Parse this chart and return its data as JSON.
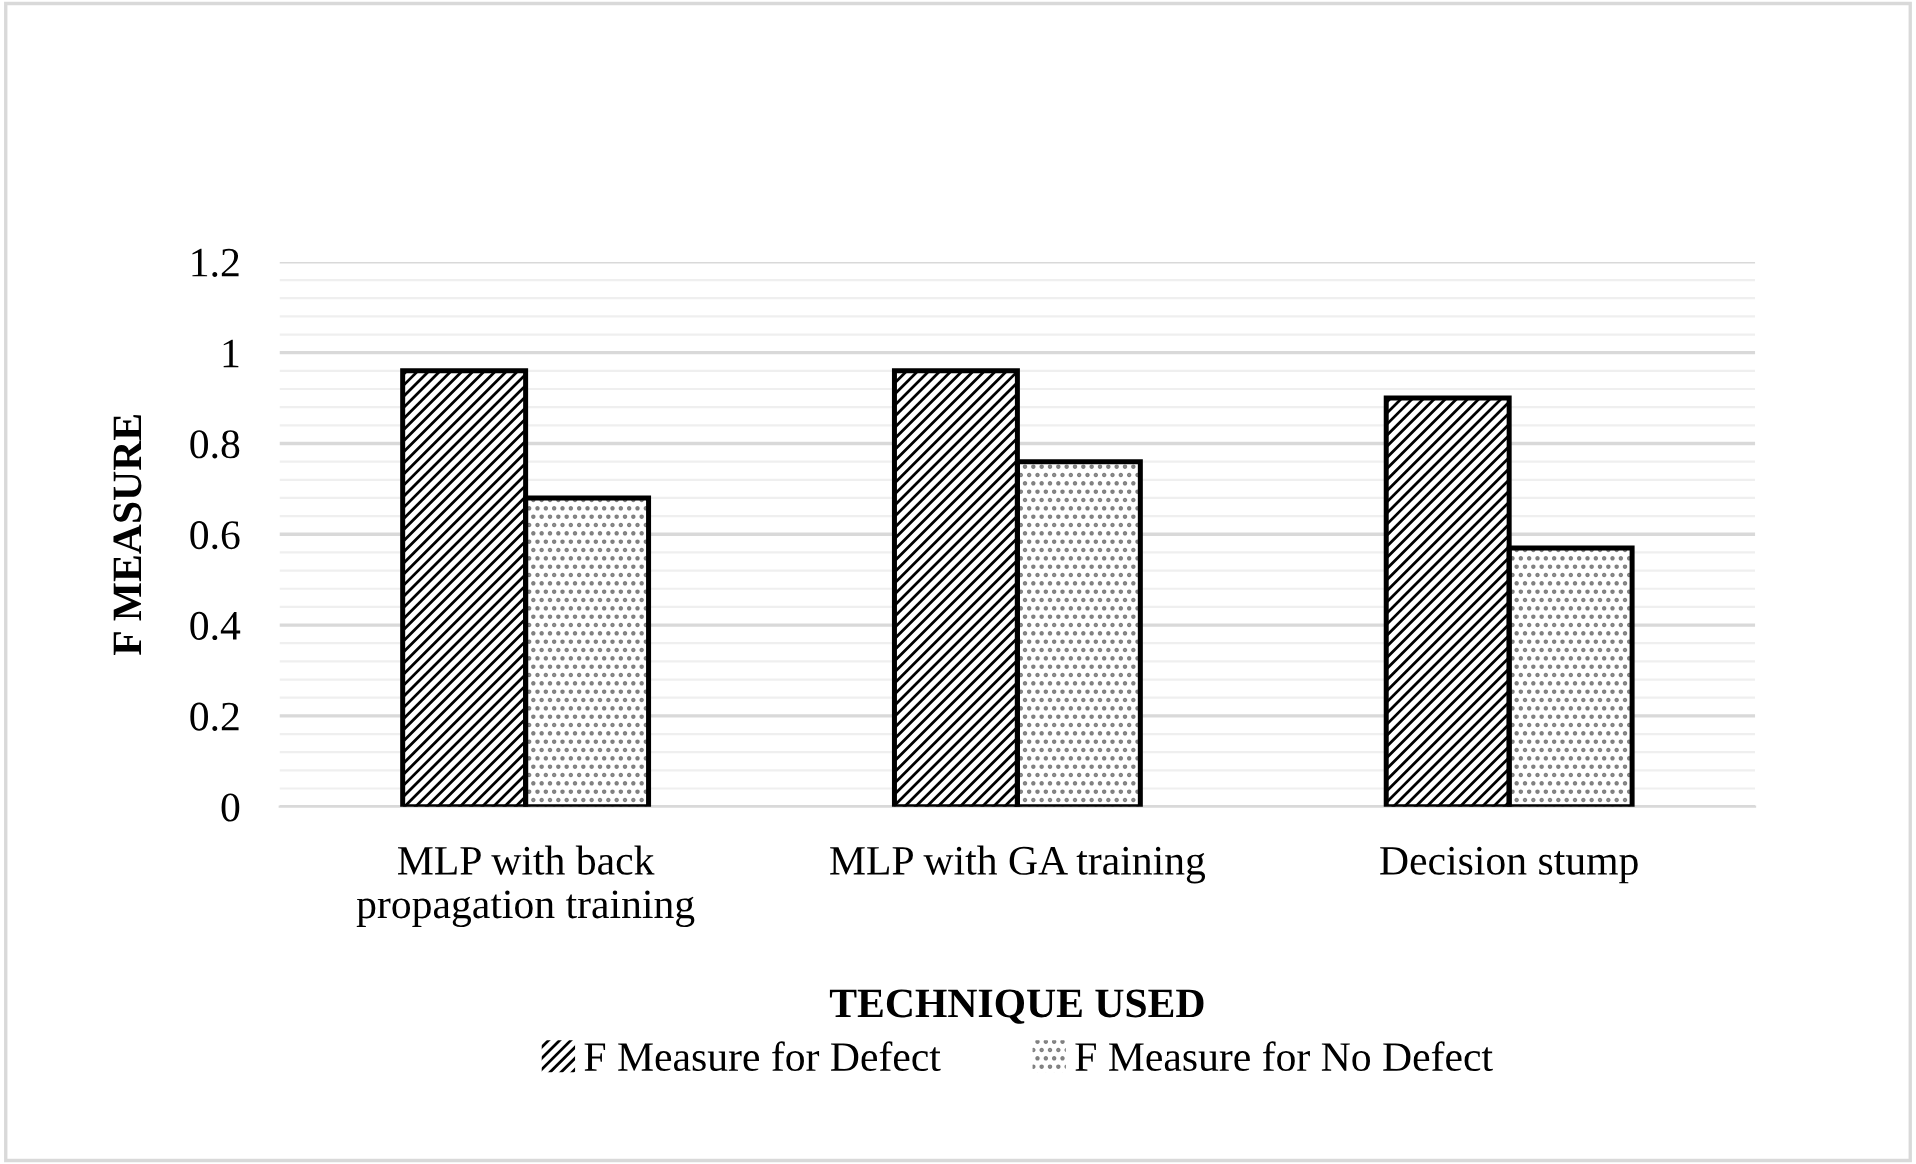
{
  "chart_data": {
    "type": "bar",
    "xlabel": "TECHNIQUE USED",
    "ylabel": "F MEASURE",
    "categories": [
      "MLP with back\npropagation training",
      "MLP with GA training",
      "Decision stump"
    ],
    "series": [
      {
        "name": "F Measure for Defect",
        "color": "#000000",
        "values": [
          0.96,
          0.96,
          0.9
        ]
      },
      {
        "name": "F Measure for No Defect",
        "color": "#7f7f7f",
        "values": [
          0.68,
          0.76,
          0.57
        ]
      }
    ],
    "ylim": [
      0,
      1.2
    ],
    "yticks": [
      0,
      {
        "value": 0.04,
        "label": null
      },
      {
        "value": 0.08,
        "label": null
      },
      {
        "value": 0.12,
        "label": null
      },
      {
        "value": 0.16,
        "label": null
      },
      0.2,
      {
        "value": 0.24,
        "label": null
      },
      {
        "value": 0.28,
        "label": null
      },
      {
        "value": 0.32,
        "label": null
      },
      {
        "value": 0.36,
        "label": null
      },
      0.4,
      {
        "value": 0.44,
        "label": null
      },
      {
        "value": 0.48,
        "label": null
      },
      {
        "value": 0.52,
        "label": null
      },
      {
        "value": 0.56,
        "label": null
      },
      0.6,
      {
        "value": 0.64,
        "label": null
      },
      {
        "value": 0.68,
        "label": null
      },
      {
        "value": 0.72,
        "label": null
      },
      {
        "value": 0.76,
        "label": null
      },
      0.8,
      {
        "value": 0.84,
        "label": null
      },
      {
        "value": 0.88,
        "label": null
      },
      {
        "value": 0.92,
        "label": null
      },
      {
        "value": 0.96,
        "label": null
      },
      1,
      {
        "value": 1.04,
        "label": null
      },
      {
        "value": 1.08,
        "label": null
      },
      {
        "value": 1.12,
        "label": null
      },
      {
        "value": 1.16,
        "label": null
      },
      1.2
    ],
    "grid": "y",
    "legend": "bottom"
  }
}
